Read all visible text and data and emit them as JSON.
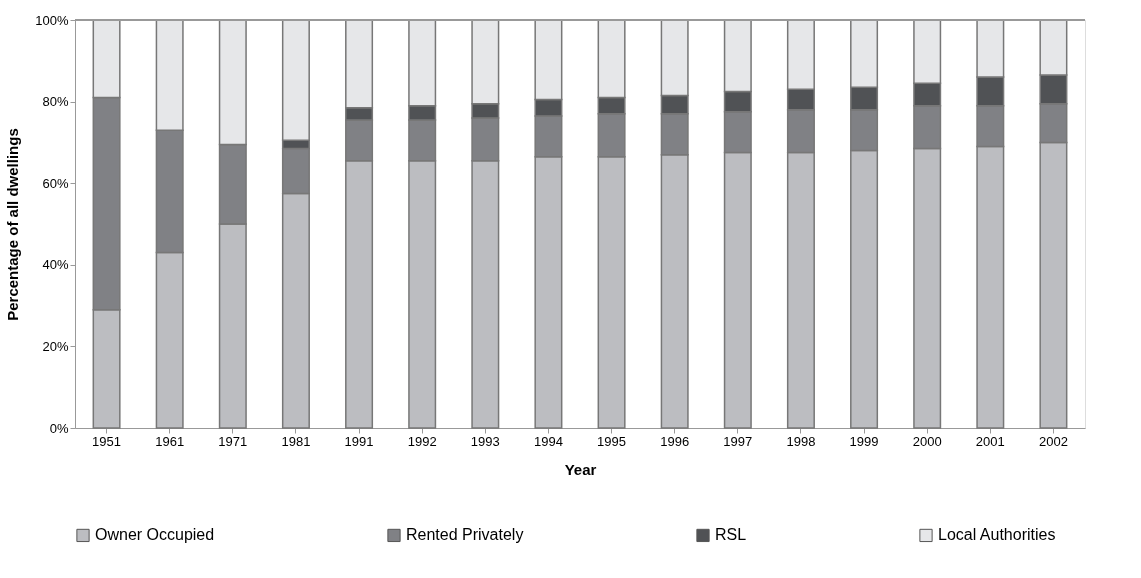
{
  "chart_data": {
    "type": "bar",
    "stacked": true,
    "xlabel": "Year",
    "ylabel": "Percentage of all dwellings",
    "categories": [
      "1951",
      "1961",
      "1971",
      "1981",
      "1991",
      "1992",
      "1993",
      "1994",
      "1995",
      "1996",
      "1997",
      "1998",
      "1999",
      "2000",
      "2001",
      "2002"
    ],
    "series": [
      {
        "name": "Owner Occupied",
        "color": "#bcbdc1",
        "values": [
          29,
          43,
          50,
          57.5,
          65.5,
          65.5,
          65.5,
          66.5,
          66.5,
          67,
          67.5,
          67.5,
          68,
          68.5,
          69,
          70
        ]
      },
      {
        "name": "Rented Privately",
        "color": "#808185",
        "values": [
          52,
          30,
          19.5,
          11,
          10,
          10,
          10.5,
          10,
          10.5,
          10,
          10,
          10.5,
          10,
          10.5,
          10,
          9.5
        ]
      },
      {
        "name": "RSL",
        "color": "#505255",
        "values": [
          0,
          0,
          0,
          2,
          3,
          3.5,
          3.5,
          4,
          4,
          4.5,
          5,
          5,
          5.5,
          5.5,
          7,
          7
        ]
      },
      {
        "name": "Local Authorities",
        "color": "#e6e7e9",
        "values": [
          19,
          27,
          30.5,
          29.5,
          21.5,
          21,
          20.5,
          19.5,
          19,
          18.5,
          17.5,
          17,
          16.5,
          15.5,
          14,
          13.5
        ]
      }
    ],
    "ylim": [
      0,
      100
    ],
    "yticks": [
      {
        "value": 0,
        "label": "0%"
      },
      {
        "value": 20,
        "label": "20%"
      },
      {
        "value": 40,
        "label": "40%"
      },
      {
        "value": 60,
        "label": "60%"
      },
      {
        "value": 80,
        "label": "80%"
      },
      {
        "value": 100,
        "label": "100%"
      }
    ],
    "grid": false,
    "legend": "bottom"
  }
}
